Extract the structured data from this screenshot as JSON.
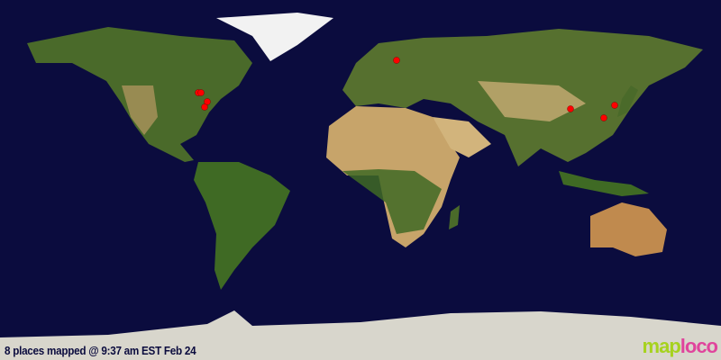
{
  "map": {
    "caption": "8 places mapped @ 9:37 am EST Feb 24",
    "places_count": 8,
    "marker_color": "#ff0000",
    "ocean_color": "#0b0c3e",
    "projection": "equirectangular world map"
  },
  "logo": {
    "part1": "map",
    "part2": "loco"
  }
}
